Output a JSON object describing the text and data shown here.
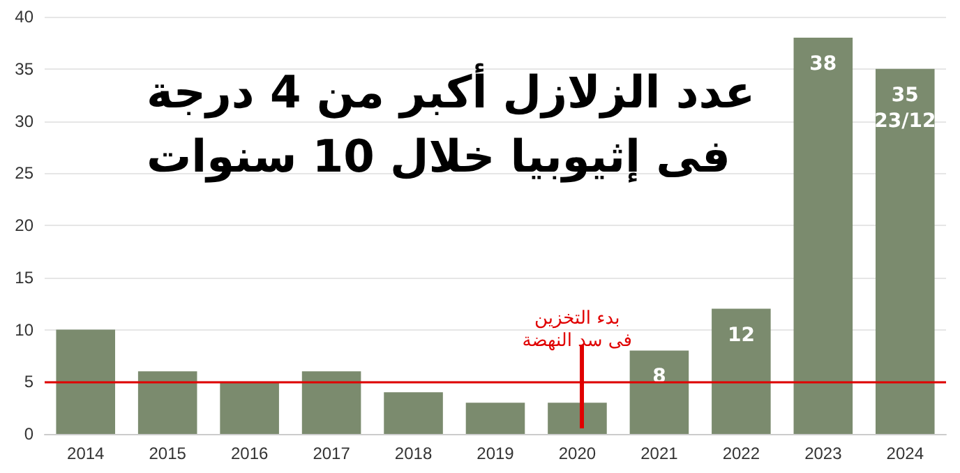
{
  "chart_data": {
    "type": "bar",
    "title": "عدد الزلازل أكبر من 4 درجة\nفى إثيوبيا خلال 10 سنوات",
    "categories": [
      "2014",
      "2015",
      "2016",
      "2017",
      "2018",
      "2019",
      "2020",
      "2021",
      "2022",
      "2023",
      "2024"
    ],
    "values": [
      10,
      6,
      5,
      6,
      4,
      3,
      3,
      8,
      12,
      38,
      35
    ],
    "value_labels": [
      null,
      null,
      null,
      null,
      null,
      null,
      null,
      "8",
      "12",
      "38",
      "35"
    ],
    "color": "#7b8b6e",
    "ylim": [
      0,
      40
    ],
    "yticks": [
      0,
      5,
      10,
      15,
      20,
      25,
      30,
      35,
      40
    ],
    "grid": "y",
    "ref_lines": [
      {
        "axis": "y",
        "value": 5,
        "color": "#e00000"
      }
    ],
    "annotations": [
      {
        "text": "بدء التخزين\nفى سد النهضة",
        "x": "2020",
        "y": 3
      },
      {
        "text": "23/12",
        "x": "2024",
        "y": 35
      }
    ]
  }
}
